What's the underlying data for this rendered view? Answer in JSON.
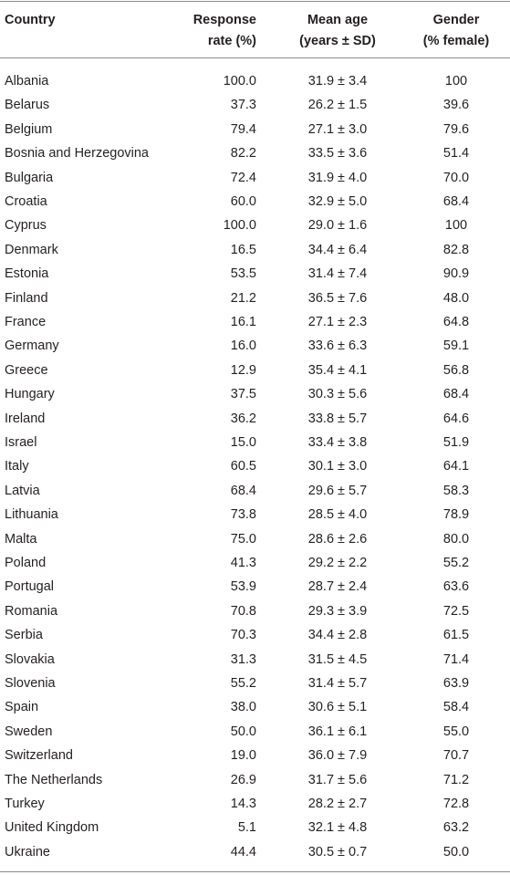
{
  "table": {
    "header": [
      [
        "Country"
      ],
      [
        "Response",
        "rate (%)"
      ],
      [
        "Mean age",
        "(years ± SD)"
      ],
      [
        "Gender",
        "(% female)"
      ]
    ],
    "rows": [
      [
        "Albania",
        "100.0",
        "31.9 ± 3.4",
        "100"
      ],
      [
        "Belarus",
        "37.3",
        "26.2 ± 1.5",
        "39.6"
      ],
      [
        "Belgium",
        "79.4",
        "27.1 ± 3.0",
        "79.6"
      ],
      [
        "Bosnia and Herzegovina",
        "82.2",
        "33.5 ± 3.6",
        "51.4"
      ],
      [
        "Bulgaria",
        "72.4",
        "31.9 ± 4.0",
        "70.0"
      ],
      [
        "Croatia",
        "60.0",
        "32.9 ± 5.0",
        "68.4"
      ],
      [
        "Cyprus",
        "100.0",
        "29.0 ± 1.6",
        "100"
      ],
      [
        "Denmark",
        "16.5",
        "34.4 ± 6.4",
        "82.8"
      ],
      [
        "Estonia",
        "53.5",
        "31.4 ± 7.4",
        "90.9"
      ],
      [
        "Finland",
        "21.2",
        "36.5 ± 7.6",
        "48.0"
      ],
      [
        "France",
        "16.1",
        "27.1 ± 2.3",
        "64.8"
      ],
      [
        "Germany",
        "16.0",
        "33.6 ± 6.3",
        "59.1"
      ],
      [
        "Greece",
        "12.9",
        "35.4 ± 4.1",
        "56.8"
      ],
      [
        "Hungary",
        "37.5",
        "30.3 ± 5.6",
        "68.4"
      ],
      [
        "Ireland",
        "36.2",
        "33.8 ± 5.7",
        "64.6"
      ],
      [
        "Israel",
        "15.0",
        "33.4 ± 3.8",
        "51.9"
      ],
      [
        "Italy",
        "60.5",
        "30.1 ± 3.0",
        "64.1"
      ],
      [
        "Latvia",
        "68.4",
        "29.6 ± 5.7",
        "58.3"
      ],
      [
        "Lithuania",
        "73.8",
        "28.5 ± 4.0",
        "78.9"
      ],
      [
        "Malta",
        "75.0",
        "28.6 ± 2.6",
        "80.0"
      ],
      [
        "Poland",
        "41.3",
        "29.2 ± 2.2",
        "55.2"
      ],
      [
        "Portugal",
        "53.9",
        "28.7 ± 2.4",
        "63.6"
      ],
      [
        "Romania",
        "70.8",
        "29.3 ± 3.9",
        "72.5"
      ],
      [
        "Serbia",
        "70.3",
        "34.4 ± 2.8",
        "61.5"
      ],
      [
        "Slovakia",
        "31.3",
        "31.5 ± 4.5",
        "71.4"
      ],
      [
        "Slovenia",
        "55.2",
        "31.4 ± 5.7",
        "63.9"
      ],
      [
        "Spain",
        "38.0",
        "30.6 ± 5.1",
        "58.4"
      ],
      [
        "Sweden",
        "50.0",
        "36.1 ± 6.1",
        "55.0"
      ],
      [
        "Switzerland",
        "19.0",
        "36.0 ± 7.9",
        "70.7"
      ],
      [
        "The Netherlands",
        "26.9",
        "31.7 ± 5.6",
        "71.2"
      ],
      [
        "Turkey",
        "14.3",
        "28.2 ± 2.7",
        "72.8"
      ],
      [
        "United Kingdom",
        "5.1",
        "32.1 ± 4.8",
        "63.2"
      ],
      [
        "Ukraine",
        "44.4",
        "30.5 ± 0.7",
        "50.0"
      ]
    ]
  }
}
